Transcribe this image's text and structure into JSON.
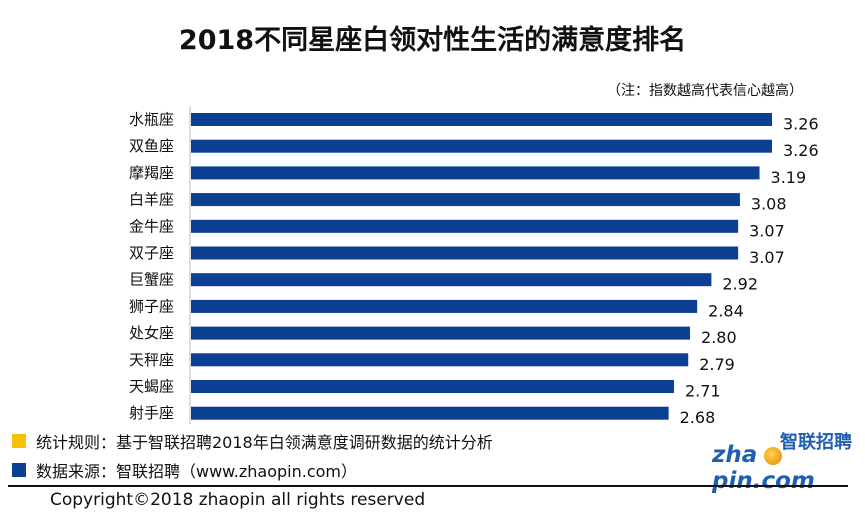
{
  "title": "2018不同星座白领对性生活的满意度排名",
  "note": "（注：指数越高代表信心越高）",
  "chart_data": {
    "type": "bar",
    "orientation": "horizontal",
    "categories": [
      "水瓶座",
      "双鱼座",
      "摩羯座",
      "白羊座",
      "金牛座",
      "双子座",
      "巨蟹座",
      "狮子座",
      "处女座",
      "天秤座",
      "天蝎座",
      "射手座"
    ],
    "values": [
      3.26,
      3.26,
      3.19,
      3.08,
      3.07,
      3.07,
      2.92,
      2.84,
      2.8,
      2.79,
      2.71,
      2.68
    ],
    "value_labels": [
      "3.26",
      "3.26",
      "3.19",
      "3.08",
      "3.07",
      "3.07",
      "2.92",
      "2.84",
      "2.80",
      "2.79",
      "2.71",
      "2.68"
    ],
    "xlim": [
      0,
      3.26
    ],
    "bar_color": "#0b3f91",
    "grid": false,
    "xaxis_visible": false
  },
  "footer": {
    "rule_text": "统计规则：基于智联招聘2018年白领满意度调研数据的统计分析",
    "rule_color": "#f5c400",
    "source_text": "数据来源：智联招聘（www.zhaopin.com）",
    "source_color": "#0b3f91",
    "copyright": "Copyright©2018 zhaopin all rights reserved"
  },
  "logo": {
    "cn": "智联招聘",
    "en": "zha pin.com"
  }
}
